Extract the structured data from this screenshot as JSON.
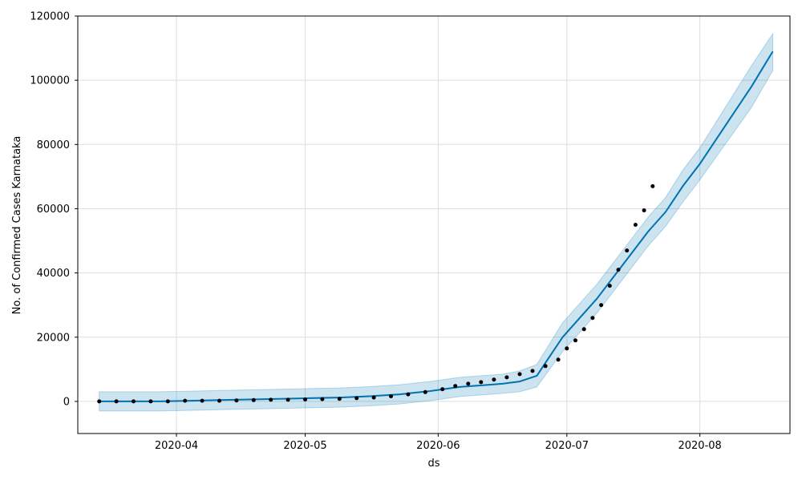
{
  "chart_data": {
    "type": "line",
    "xlabel": "ds",
    "ylabel": "No. of Confirmed Cases Karnataka",
    "grid": true,
    "xlim": [
      "2020-03-09",
      "2020-08-22"
    ],
    "ylim": [
      -10000,
      120000
    ],
    "x_ticks": [
      "2020-04",
      "2020-05",
      "2020-06",
      "2020-07",
      "2020-08"
    ],
    "x_tick_dates": [
      "2020-04-01",
      "2020-05-01",
      "2020-06-01",
      "2020-07-01",
      "2020-08-01"
    ],
    "y_ticks": [
      0,
      20000,
      40000,
      60000,
      80000,
      100000,
      120000
    ],
    "forecast": {
      "color": "#0072B2",
      "band_color": "#0072B2",
      "dates": [
        "2020-03-14",
        "2020-03-21",
        "2020-03-28",
        "2020-04-04",
        "2020-04-11",
        "2020-04-18",
        "2020-04-25",
        "2020-05-02",
        "2020-05-09",
        "2020-05-16",
        "2020-05-23",
        "2020-05-30",
        "2020-06-06",
        "2020-06-13",
        "2020-06-16",
        "2020-06-20",
        "2020-06-24",
        "2020-06-27",
        "2020-06-30",
        "2020-07-04",
        "2020-07-08",
        "2020-07-12",
        "2020-07-16",
        "2020-07-20",
        "2020-07-24",
        "2020-07-28",
        "2020-08-01",
        "2020-08-05",
        "2020-08-09",
        "2020-08-13",
        "2020-08-18"
      ],
      "yhat": [
        0,
        0,
        0,
        200,
        400,
        600,
        800,
        1000,
        1200,
        1600,
        2200,
        3200,
        4500,
        5200,
        5500,
        6200,
        8000,
        14000,
        20000,
        26000,
        32000,
        39000,
        46000,
        53000,
        59000,
        67000,
        74000,
        82000,
        90000,
        98000,
        109000
      ],
      "yhat_lower": [
        -3000,
        -3000,
        -3000,
        -2800,
        -2600,
        -2400,
        -2200,
        -2000,
        -1800,
        -1400,
        -800,
        200,
        1500,
        2200,
        2500,
        3000,
        4500,
        10000,
        15500,
        21500,
        27500,
        34500,
        41500,
        48500,
        54500,
        62000,
        69000,
        76500,
        84000,
        91500,
        103000
      ],
      "yhat_upper": [
        3000,
        3000,
        3000,
        3200,
        3400,
        3600,
        3800,
        4000,
        4200,
        4600,
        5200,
        6200,
        7500,
        8200,
        8500,
        9500,
        11500,
        18000,
        24500,
        30500,
        36500,
        43500,
        50500,
        57500,
        63500,
        72000,
        79000,
        87500,
        96000,
        104500,
        114500
      ]
    },
    "actual": {
      "color": "#000000",
      "dates": [
        "2020-03-14",
        "2020-03-18",
        "2020-03-22",
        "2020-03-26",
        "2020-03-30",
        "2020-04-03",
        "2020-04-07",
        "2020-04-11",
        "2020-04-15",
        "2020-04-19",
        "2020-04-23",
        "2020-04-27",
        "2020-05-01",
        "2020-05-05",
        "2020-05-09",
        "2020-05-13",
        "2020-05-17",
        "2020-05-21",
        "2020-05-25",
        "2020-05-29",
        "2020-06-02",
        "2020-06-05",
        "2020-06-08",
        "2020-06-11",
        "2020-06-14",
        "2020-06-17",
        "2020-06-20",
        "2020-06-23",
        "2020-06-26",
        "2020-06-29",
        "2020-07-01",
        "2020-07-03",
        "2020-07-05",
        "2020-07-07",
        "2020-07-09",
        "2020-07-11",
        "2020-07-13",
        "2020-07-15",
        "2020-07-17",
        "2020-07-19",
        "2020-07-21"
      ],
      "values": [
        0,
        0,
        0,
        0,
        0,
        200,
        200,
        200,
        300,
        400,
        500,
        500,
        600,
        700,
        800,
        1000,
        1200,
        1600,
        2200,
        2900,
        3800,
        4800,
        5500,
        6000,
        6800,
        7500,
        8500,
        9500,
        11000,
        13000,
        16500,
        19000,
        22500,
        26000,
        30000,
        36000,
        41000,
        47000,
        55000,
        59500,
        67000
      ]
    }
  }
}
